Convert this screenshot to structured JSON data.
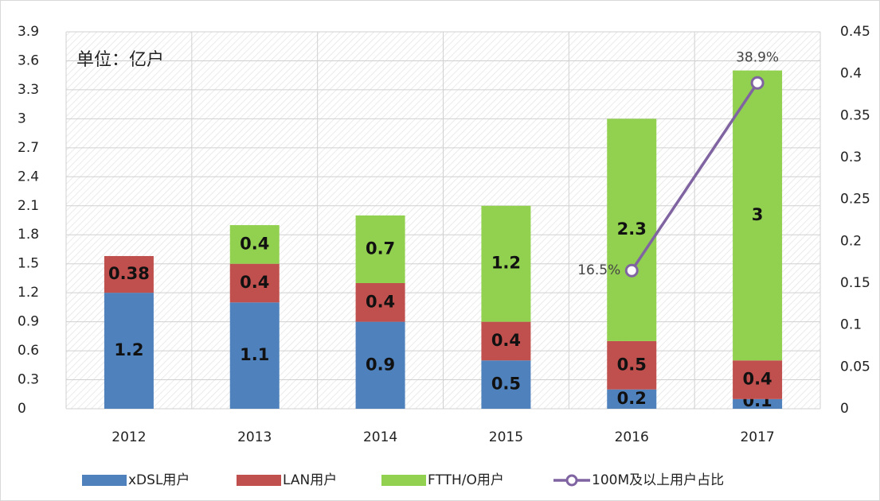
{
  "chart_data": {
    "type": "bar",
    "stacked": true,
    "annotation": "单位：亿户",
    "categories": [
      "2012",
      "2013",
      "2014",
      "2015",
      "2016",
      "2017"
    ],
    "series": [
      {
        "name": "xDSL用户",
        "color": "#4f81bd",
        "values": [
          1.2,
          1.1,
          0.9,
          0.5,
          0.2,
          0.1
        ]
      },
      {
        "name": "LAN用户",
        "color": "#c0504d",
        "values": [
          0.38,
          0.4,
          0.4,
          0.4,
          0.5,
          0.4
        ]
      },
      {
        "name": "FTTH/O用户",
        "color": "#92d050",
        "values": [
          null,
          0.4,
          0.7,
          1.2,
          2.3,
          3
        ]
      },
      {
        "name": "100M及以上用户占比",
        "type": "line",
        "axis": "y2",
        "color": "#8064a2",
        "values": [
          null,
          null,
          null,
          null,
          0.165,
          0.389
        ],
        "value_labels": [
          null,
          null,
          null,
          null,
          "16.5%",
          "38.9%"
        ]
      }
    ],
    "ylim": [
      0,
      3.9
    ],
    "yticks": [
      0,
      0.3,
      0.6,
      0.9,
      1.2,
      1.5,
      1.8,
      2.1,
      2.4,
      2.7,
      3,
      3.3,
      3.6,
      3.9
    ],
    "y2lim": [
      0,
      0.45
    ],
    "y2ticks": [
      0,
      0.05,
      0.1,
      0.15,
      0.2,
      0.25,
      0.3,
      0.35,
      0.4,
      0.45
    ],
    "grid": true,
    "legend": "bottom"
  }
}
